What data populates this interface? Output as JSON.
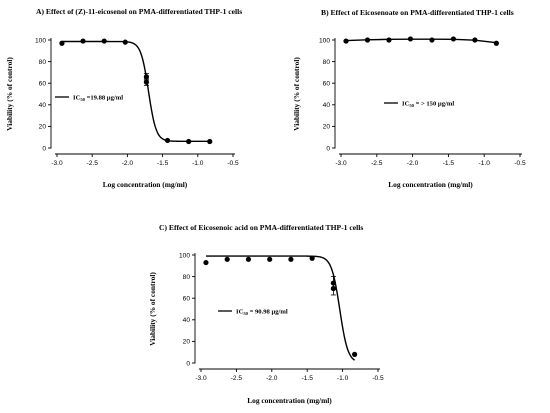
{
  "chart_data": [
    {
      "type": "line",
      "title": "A) Effect of (Z)-11-eicosenol on PMA-differentiated THP-1 cells",
      "xlabel": "Log concentration (mg/ml)",
      "ylabel": "Viability (% of control)",
      "xlim": [
        -3.0,
        -0.5
      ],
      "ylim": [
        0,
        100
      ],
      "x_ticks": [
        "-3.0",
        "-2.5",
        "-2.0",
        "-1.5",
        "-1.0",
        "-0.5"
      ],
      "y_ticks": [
        "0",
        "20",
        "40",
        "60",
        "80",
        "100"
      ],
      "legend": {
        "prefix": "IC",
        "sub": "50",
        "value": " =19.88 µg/ml"
      },
      "points": [
        {
          "x": -2.93,
          "y": 97
        },
        {
          "x": -2.63,
          "y": 99
        },
        {
          "x": -2.33,
          "y": 99
        },
        {
          "x": -2.03,
          "y": 98
        },
        {
          "x": -1.73,
          "y": 66,
          "err": 3
        },
        {
          "x": -1.73,
          "y": 61,
          "err": 3
        },
        {
          "x": -1.43,
          "y": 7
        },
        {
          "x": -1.13,
          "y": 6
        },
        {
          "x": -0.83,
          "y": 6
        }
      ],
      "fit": {
        "top": 98.6,
        "bottom": 6.2,
        "logIC50": -1.7,
        "hill": -8.0,
        "range": [
          -2.93,
          -0.83
        ]
      }
    },
    {
      "type": "line",
      "title": "B) Effect of Eicosenoate on PMA-differentiated THP-1 cells",
      "xlabel": "Log concentration (mg/ml)",
      "ylabel": "Viability (% of control)",
      "xlim": [
        -3.0,
        -0.5
      ],
      "ylim": [
        0,
        100
      ],
      "x_ticks": [
        "-3.0",
        "-2.5",
        "-2.0",
        "-1.5",
        "-1.0",
        "-0.5"
      ],
      "y_ticks": [
        "0",
        "20",
        "40",
        "60",
        "80",
        "100"
      ],
      "legend": {
        "prefix": "IC",
        "sub": "50",
        "value": " = > 150 µg/ml"
      },
      "points": [
        {
          "x": -2.93,
          "y": 99
        },
        {
          "x": -2.63,
          "y": 100
        },
        {
          "x": -2.33,
          "y": 100
        },
        {
          "x": -2.03,
          "y": 101
        },
        {
          "x": -1.73,
          "y": 100
        },
        {
          "x": -1.43,
          "y": 101
        },
        {
          "x": -1.13,
          "y": 100
        },
        {
          "x": -0.83,
          "y": 97
        }
      ],
      "fit_points": [
        [
          -2.93,
          99.5
        ],
        [
          -2.63,
          100.2
        ],
        [
          -2.33,
          100.6
        ],
        [
          -2.03,
          100.8
        ],
        [
          -1.73,
          100.8
        ],
        [
          -1.43,
          100.6
        ],
        [
          -1.13,
          99.8
        ],
        [
          -0.83,
          97.5
        ]
      ]
    },
    {
      "type": "line",
      "title": "C) Effect of Eicosenoic acid on PMA-differentiated THP-1 cells",
      "xlabel": "Log concentration (mg/ml)",
      "ylabel": "Viability (% of control)",
      "xlim": [
        -3.0,
        -0.5
      ],
      "ylim": [
        0,
        100
      ],
      "x_ticks": [
        "-3.0",
        "-2.5",
        "-2.0",
        "-1.5",
        "-1.0",
        "-0.5"
      ],
      "y_ticks": [
        "0",
        "20",
        "40",
        "60",
        "80",
        "100"
      ],
      "legend": {
        "prefix": "IC",
        "sub": "50",
        "value": " = 90.98 µg/ml"
      },
      "points": [
        {
          "x": -2.93,
          "y": 93
        },
        {
          "x": -2.63,
          "y": 96
        },
        {
          "x": -2.33,
          "y": 96
        },
        {
          "x": -2.03,
          "y": 96
        },
        {
          "x": -1.73,
          "y": 96
        },
        {
          "x": -1.43,
          "y": 97
        },
        {
          "x": -1.13,
          "y": 74,
          "err": 6
        },
        {
          "x": -1.13,
          "y": 69,
          "err": 6
        },
        {
          "x": -0.83,
          "y": 8
        }
      ],
      "fit": {
        "top": 99.0,
        "bottom": 0.0,
        "logIC50": -1.04,
        "hill": -7.5,
        "range": [
          -2.93,
          -0.83
        ]
      }
    }
  ]
}
